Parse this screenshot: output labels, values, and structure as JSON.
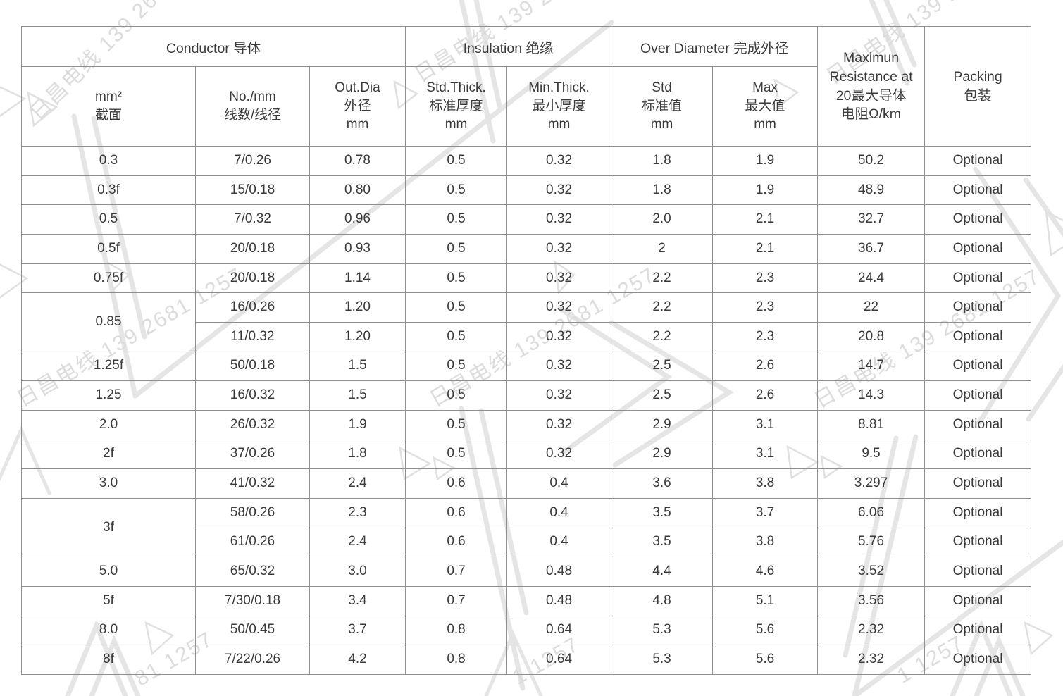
{
  "header": {
    "groups": [
      {
        "label": "Conductor 导体"
      },
      {
        "label": "Insulation 绝缘"
      },
      {
        "label": "Over Diameter 完成外径"
      }
    ],
    "resistance": "Maximun\nResistance at\n20最大导体\n电阻Ω/km",
    "packing": "Packing\n包装",
    "columns": [
      "mm²\n截面",
      "No./mm\n线数/线径",
      "Out.Dia\n外径\nmm",
      "Std.Thick.\n标准厚度\nmm",
      "Min.Thick.\n最小厚度\nmm",
      "Std\n标准值\nmm",
      "Max\n最大值\nmm"
    ]
  },
  "rows": [
    [
      "0.3",
      "7/0.26",
      "0.78",
      "0.5",
      "0.32",
      "1.8",
      "1.9",
      "50.2",
      "Optional"
    ],
    [
      "0.3f",
      "15/0.18",
      "0.80",
      "0.5",
      "0.32",
      "1.8",
      "1.9",
      "48.9",
      "Optional"
    ],
    [
      "0.5",
      "7/0.32",
      "0.96",
      "0.5",
      "0.32",
      "2.0",
      "2.1",
      "32.7",
      "Optional"
    ],
    [
      "0.5f",
      "20/0.18",
      "0.93",
      "0.5",
      "0.32",
      "2",
      "2.1",
      "36.7",
      "Optional"
    ],
    [
      "0.75f",
      "20/0.18",
      "1.14",
      "0.5",
      "0.32",
      "2.2",
      "2.3",
      "24.4",
      "Optional"
    ],
    [
      {
        "text": "0.85",
        "rowspan": 2
      },
      "16/0.26",
      "1.20",
      "0.5",
      "0.32",
      "2.2",
      "2.3",
      "22",
      "Optional"
    ],
    [
      "11/0.32",
      "1.20",
      "0.5",
      "0.32",
      "2.2",
      "2.3",
      "20.8",
      "Optional"
    ],
    [
      "1.25f",
      "50/0.18",
      "1.5",
      "0.5",
      "0.32",
      "2.5",
      "2.6",
      "14.7",
      "Optional"
    ],
    [
      "1.25",
      "16/0.32",
      "1.5",
      "0.5",
      "0.32",
      "2.5",
      "2.6",
      "14.3",
      "Optional"
    ],
    [
      "2.0",
      "26/0.32",
      "1.9",
      "0.5",
      "0.32",
      "2.9",
      "3.1",
      "8.81",
      "Optional"
    ],
    [
      "2f",
      "37/0.26",
      "1.8",
      "0.5",
      "0.32",
      "2.9",
      "3.1",
      "9.5",
      "Optional"
    ],
    [
      "3.0",
      "41/0.32",
      "2.4",
      "0.6",
      "0.4",
      "3.6",
      "3.8",
      "3.297",
      "Optional"
    ],
    [
      {
        "text": "3f",
        "rowspan": 2
      },
      "58/0.26",
      "2.3",
      "0.6",
      "0.4",
      "3.5",
      "3.7",
      "6.06",
      "Optional"
    ],
    [
      "61/0.26",
      "2.4",
      "0.6",
      "0.4",
      "3.5",
      "3.8",
      "5.76",
      "Optional"
    ],
    [
      "5.0",
      "65/0.32",
      "3.0",
      "0.7",
      "0.48",
      "4.4",
      "4.6",
      "3.52",
      "Optional"
    ],
    [
      "5f",
      "7/30/0.18",
      "3.4",
      "0.7",
      "0.48",
      "4.8",
      "5.1",
      "3.56",
      "Optional"
    ],
    [
      "8.0",
      "50/0.45",
      "3.7",
      "0.8",
      "0.64",
      "5.3",
      "5.6",
      "2.32",
      "Optional"
    ],
    [
      "8f",
      "7/22/0.26",
      "4.2",
      "0.8",
      "0.64",
      "5.3",
      "5.6",
      "2.32",
      "Optional"
    ]
  ],
  "watermark": {
    "full": "日昌电线 139 2681 1257",
    "partial_left": "81 1257",
    "partial_center": "1 1257",
    "partial_right": "1 1257",
    "text_color": "#dcdcdc",
    "shape_color": "#e5e5e5"
  },
  "colors": {
    "table_border": "#8e8e8e",
    "table_text": "#3a3a3a",
    "background": "#ffffff"
  }
}
